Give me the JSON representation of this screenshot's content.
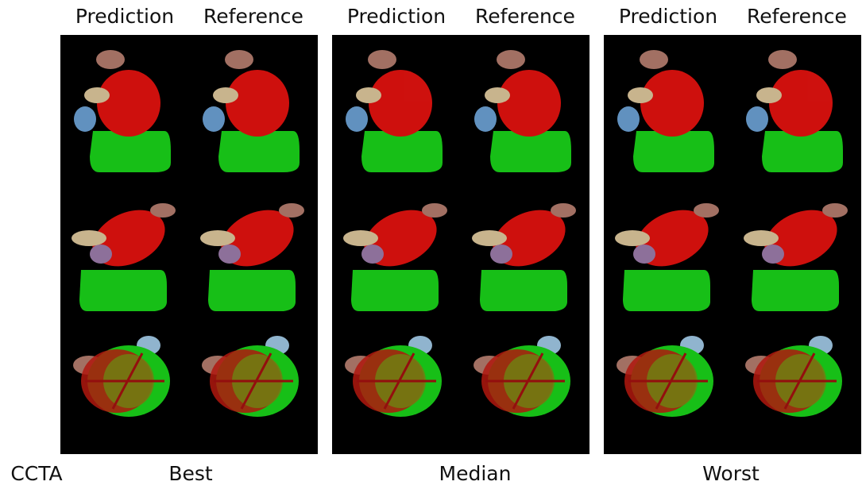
{
  "row_label": "CCTA",
  "groups": [
    {
      "label": "Best",
      "views": [
        "Prediction",
        "Reference"
      ]
    },
    {
      "label": "Median",
      "views": [
        "Prediction",
        "Reference"
      ]
    },
    {
      "label": "Worst",
      "views": [
        "Prediction",
        "Reference"
      ]
    }
  ]
}
